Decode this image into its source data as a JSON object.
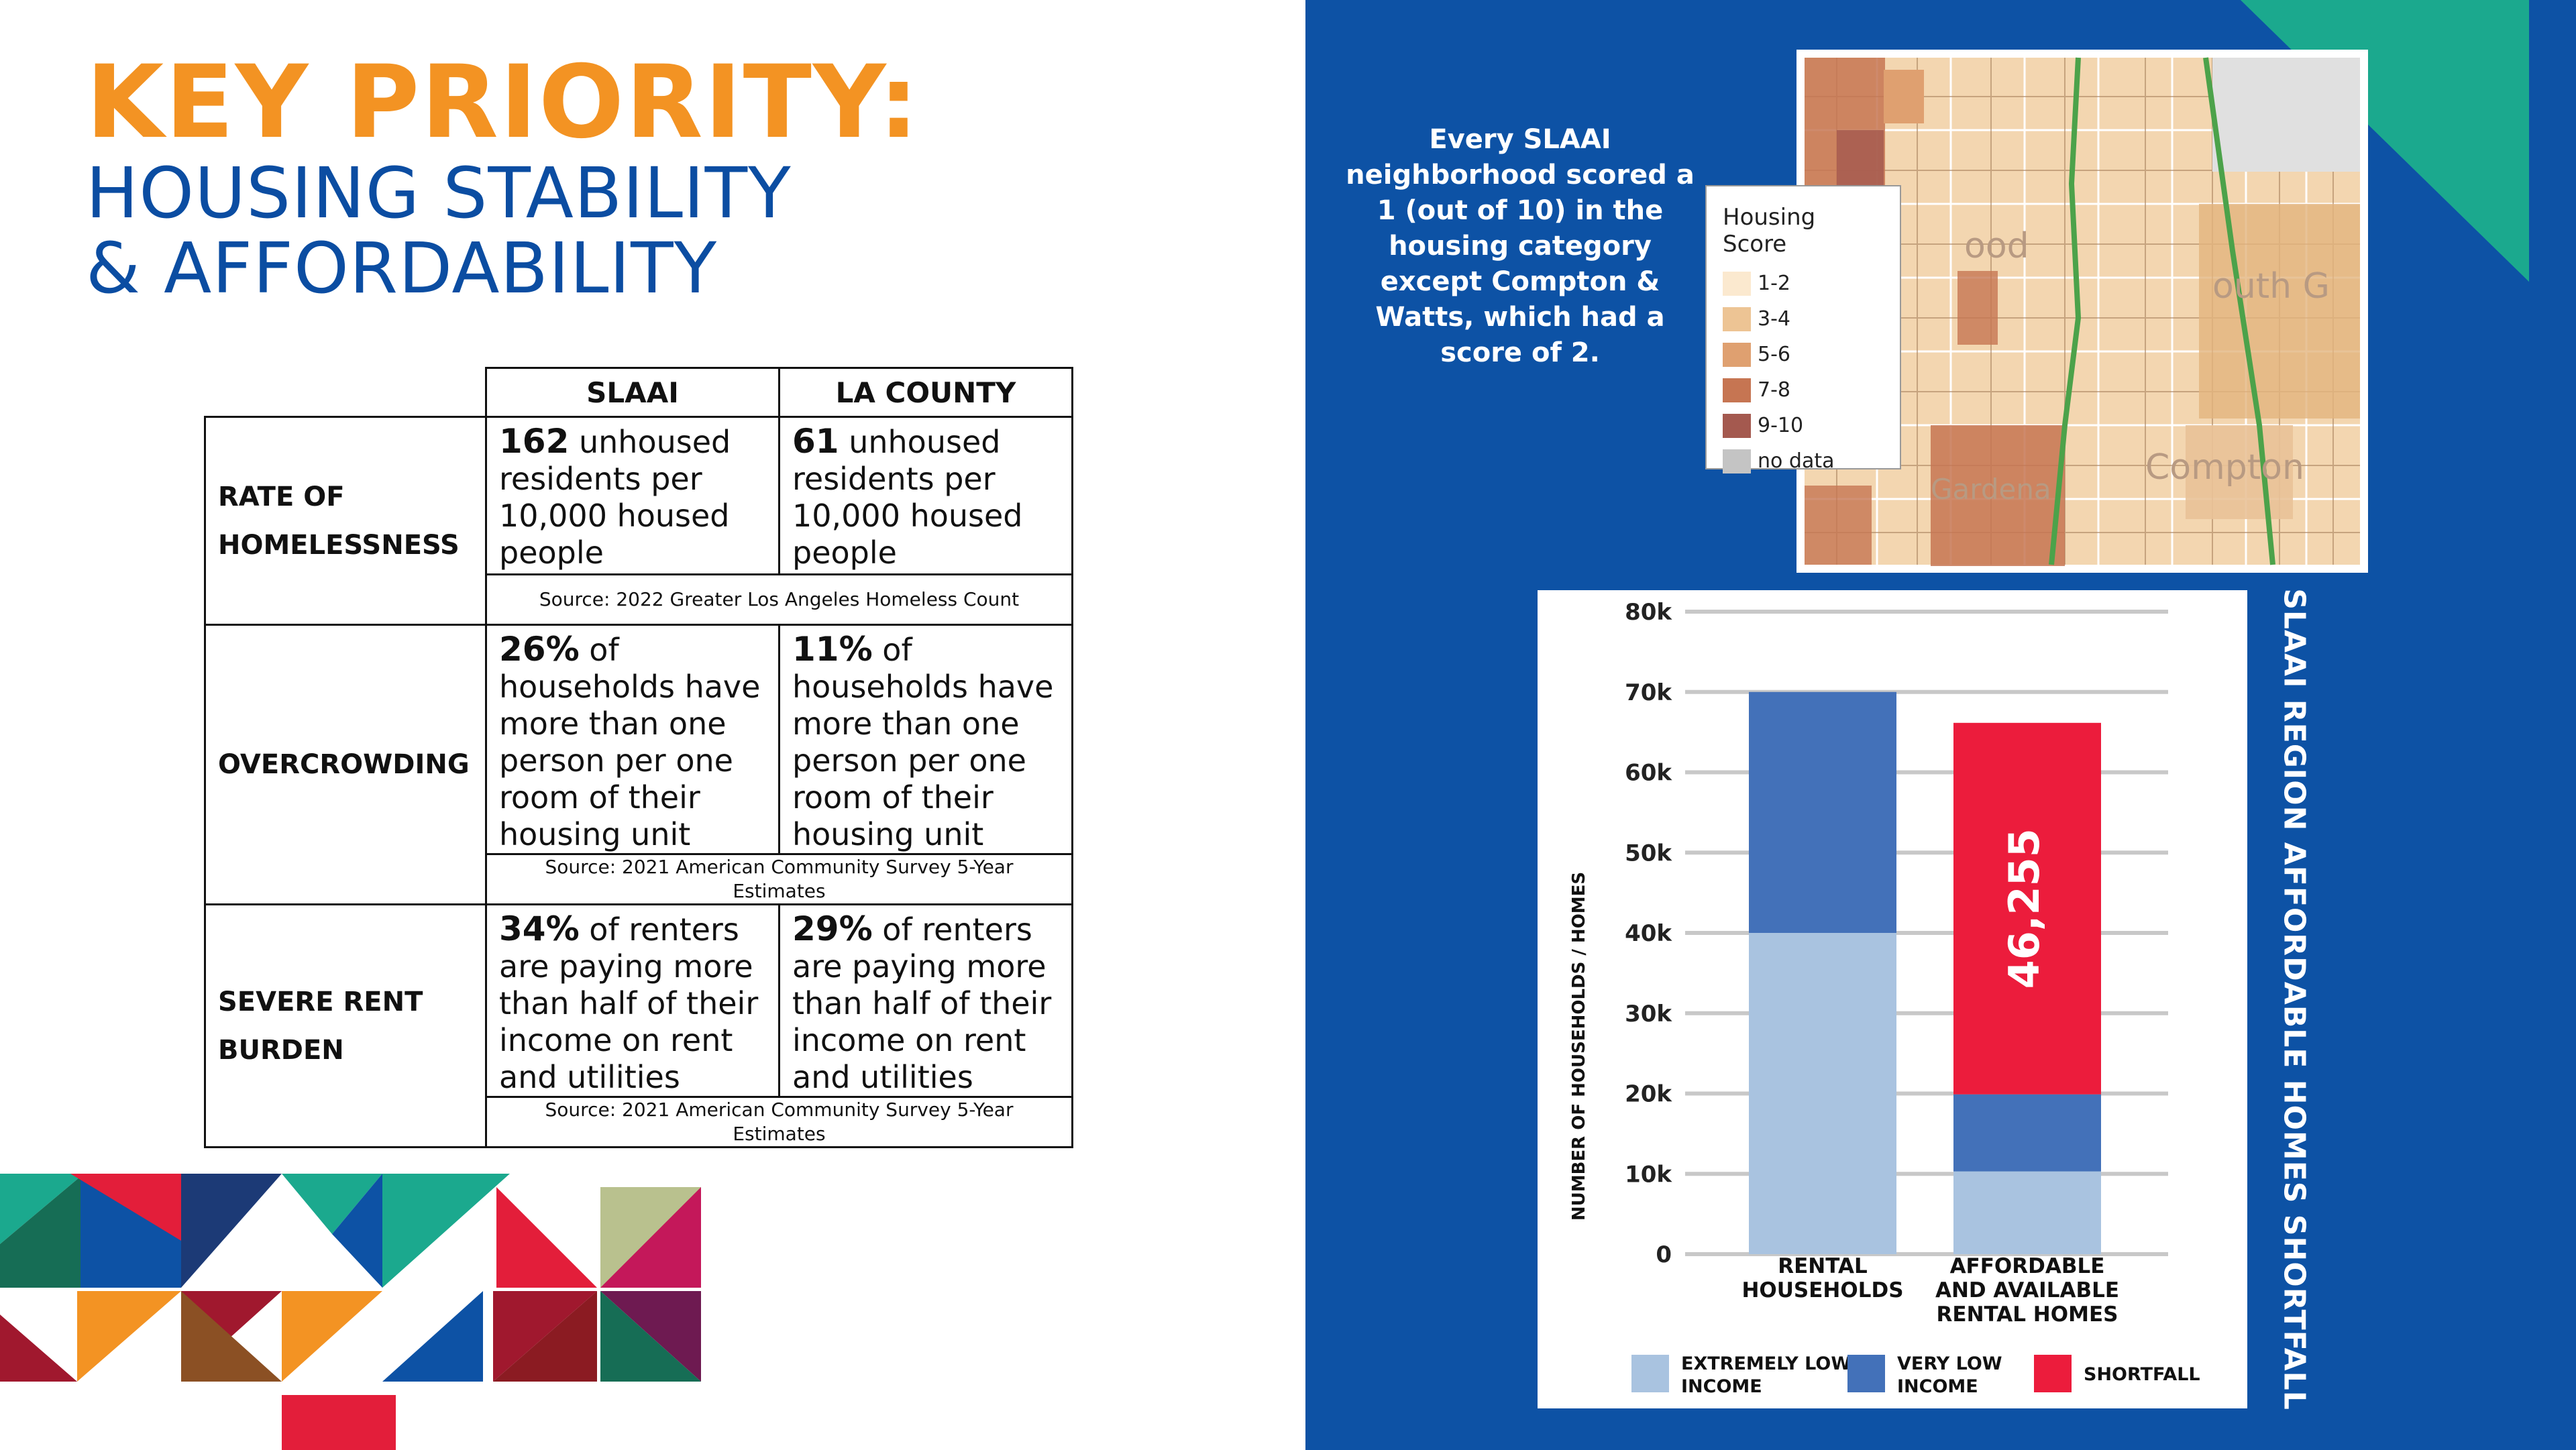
{
  "header": {
    "title": "KEY PRIORITY:",
    "subtitle_line1": "HOUSING STABILITY",
    "subtitle_line2": "& AFFORDABILITY"
  },
  "table": {
    "columns": [
      "SLAAI",
      "LA COUNTY"
    ],
    "rows": [
      {
        "label_line1": "RATE OF",
        "label_line2": "HOMELESSNESS",
        "slaai_bold": "162",
        "slaai_text": " unhoused residents per 10,000 housed people",
        "county_bold": "61",
        "county_text": " unhoused residents per 10,000 housed people",
        "source": "Source: 2022 Greater Los Angeles Homeless Count"
      },
      {
        "label_line1": "OVERCROWDING",
        "label_line2": "",
        "slaai_bold": "26%",
        "slaai_text": " of households have more than one person per one room of their housing unit",
        "county_bold": "11%",
        "county_text": " of households have more than one person per one room of their housing unit",
        "source": "Source: 2021 American Community Survey 5-Year Estimates"
      },
      {
        "label_line1": "SEVERE RENT",
        "label_line2": "BURDEN",
        "slaai_bold": "34%",
        "slaai_text": " of renters are paying more than half of their income on rent and utilities",
        "county_bold": "29%",
        "county_text": " of renters are paying more than half of their income on rent and utilities",
        "source": "Source: 2021 American Community Survey 5-Year Estimates"
      }
    ]
  },
  "note": "Every SLAAI neighborhood scored a 1 (out of 10) in the housing category except Compton & Watts, which had a score of 2.",
  "map": {
    "legend_title": "Housing Score",
    "legend": [
      {
        "label": "1-2",
        "color": "#FBE9CF"
      },
      {
        "label": "3-4",
        "color": "#EDC494"
      },
      {
        "label": "5-6",
        "color": "#DFA070"
      },
      {
        "label": "7-8",
        "color": "#C67552"
      },
      {
        "label": "9-10",
        "color": "#A4594F"
      },
      {
        "label": "no data",
        "color": "#C4C4C4"
      }
    ],
    "places": [
      "Gardena",
      "Compton",
      "ood",
      "outh G"
    ]
  },
  "chart_data": {
    "type": "bar",
    "stacked": true,
    "title": "SLAAI REGION  AFFORDABLE HOMES SHORTFALL",
    "ylabel": "NUMBER OF HOUSEHOLDS / HOMES",
    "ylim": [
      0,
      80000
    ],
    "yticks": [
      "0",
      "10k",
      "20k",
      "30k",
      "40k",
      "50k",
      "60k",
      "70k",
      "80k"
    ],
    "categories": [
      [
        "RENTAL",
        "HOUSEHOLDS"
      ],
      [
        "AFFORDABLE",
        "AND AVAILABLE",
        "RENTAL HOMES"
      ]
    ],
    "series": [
      {
        "name": "EXTREMELY LOW INCOME",
        "color": "#A9C3E0",
        "values": [
          40000,
          10300
        ]
      },
      {
        "name": "VERY LOW INCOME",
        "color": "#4371B9",
        "values": [
          30000,
          9600
        ]
      },
      {
        "name": "SHORTFALL",
        "color": "#EC1C3C",
        "values": [
          0,
          46255
        ]
      }
    ],
    "data_label": "46,255",
    "legend_position": "bottom",
    "grid": true
  }
}
